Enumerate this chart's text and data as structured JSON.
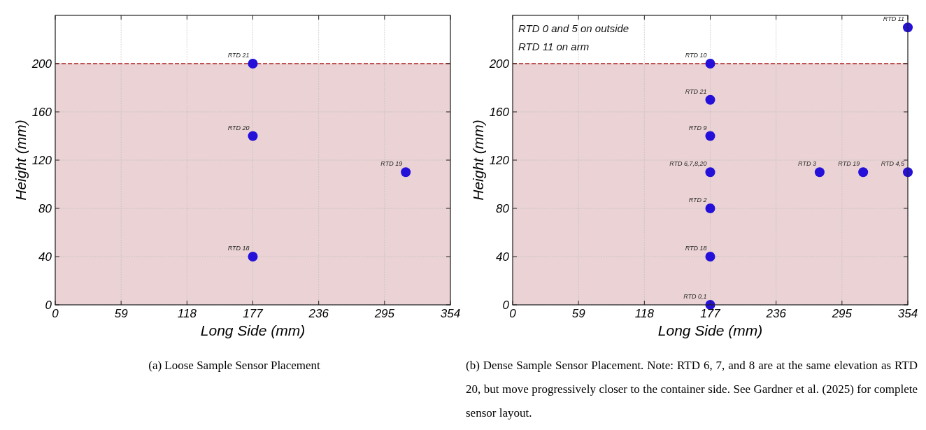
{
  "chart_data": [
    {
      "type": "scatter",
      "xlabel": "Long Side (mm)",
      "ylabel": "Height (mm)",
      "xlim": [
        0,
        354
      ],
      "ylim": [
        0,
        240
      ],
      "xticks": [
        0,
        59,
        118,
        177,
        236,
        295,
        354
      ],
      "yticks": [
        0,
        40,
        80,
        120,
        160,
        200
      ],
      "grid": true,
      "marker": "circle",
      "series": [
        {
          "color": "#2410d8",
          "x": [
            177,
            177,
            314,
            177
          ],
          "values": [
            200,
            140,
            110,
            40
          ]
        }
      ],
      "ref_lines": [
        {
          "axis": "y",
          "value": 200,
          "color": "#b22222",
          "line_style": "dashed"
        }
      ],
      "bands": [
        {
          "axis": "y",
          "from": 0,
          "to": 200,
          "color": "#ebd3d5"
        }
      ],
      "annotations": [
        {
          "text": "RTD 21",
          "x": 177,
          "y": 200
        },
        {
          "text": "RTD 20",
          "x": 177,
          "y": 140
        },
        {
          "text": "RTD 19",
          "x": 314,
          "y": 110
        },
        {
          "text": "RTD 18",
          "x": 177,
          "y": 40
        },
        "(a) Loose Sample Sensor Placement"
      ]
    },
    {
      "type": "scatter",
      "xlabel": "Long Side (mm)",
      "ylabel": "Height (mm)",
      "xlim": [
        0,
        354
      ],
      "ylim": [
        0,
        240
      ],
      "xticks": [
        0,
        59,
        118,
        177,
        236,
        295,
        354
      ],
      "yticks": [
        0,
        40,
        80,
        120,
        160,
        200
      ],
      "grid": true,
      "marker": "circle",
      "series": [
        {
          "color": "#2410d8",
          "x": [
            354,
            177,
            177,
            177,
            177,
            177,
            177,
            177,
            275,
            314,
            354
          ],
          "values": [
            230,
            200,
            170,
            140,
            110,
            80,
            40,
            0,
            110,
            110,
            110
          ]
        }
      ],
      "ref_lines": [
        {
          "axis": "y",
          "value": 200,
          "color": "#b22222",
          "line_style": "dashed"
        }
      ],
      "bands": [
        {
          "axis": "y",
          "from": 0,
          "to": 200,
          "color": "#ebd3d5"
        }
      ],
      "annotations": [
        "RTD 0 and 5 on outside",
        "RTD 11 on arm",
        {
          "text": "RTD 11",
          "x": 354,
          "y": 230
        },
        {
          "text": "RTD 10",
          "x": 177,
          "y": 200
        },
        {
          "text": "RTD 21",
          "x": 177,
          "y": 170
        },
        {
          "text": "RTD 9",
          "x": 177,
          "y": 140
        },
        {
          "text": "RTD 6,7,8,20",
          "x": 177,
          "y": 110
        },
        {
          "text": "RTD 2",
          "x": 177,
          "y": 80
        },
        {
          "text": "RTD 18",
          "x": 177,
          "y": 40
        },
        {
          "text": "RTD 0,1",
          "x": 177,
          "y": 0
        },
        {
          "text": "RTD 3",
          "x": 275,
          "y": 110
        },
        {
          "text": "RTD 19",
          "x": 314,
          "y": 110
        },
        {
          "text": "RTD 4,5",
          "x": 354,
          "y": 110
        },
        "(b) Dense Sample Sensor Placement. Note: RTD 6, 7, and 8 are at the same elevation as RTD 20, but move progressively closer to the container side. See Gardner et al. (2025) for complete sensor layout."
      ]
    }
  ]
}
